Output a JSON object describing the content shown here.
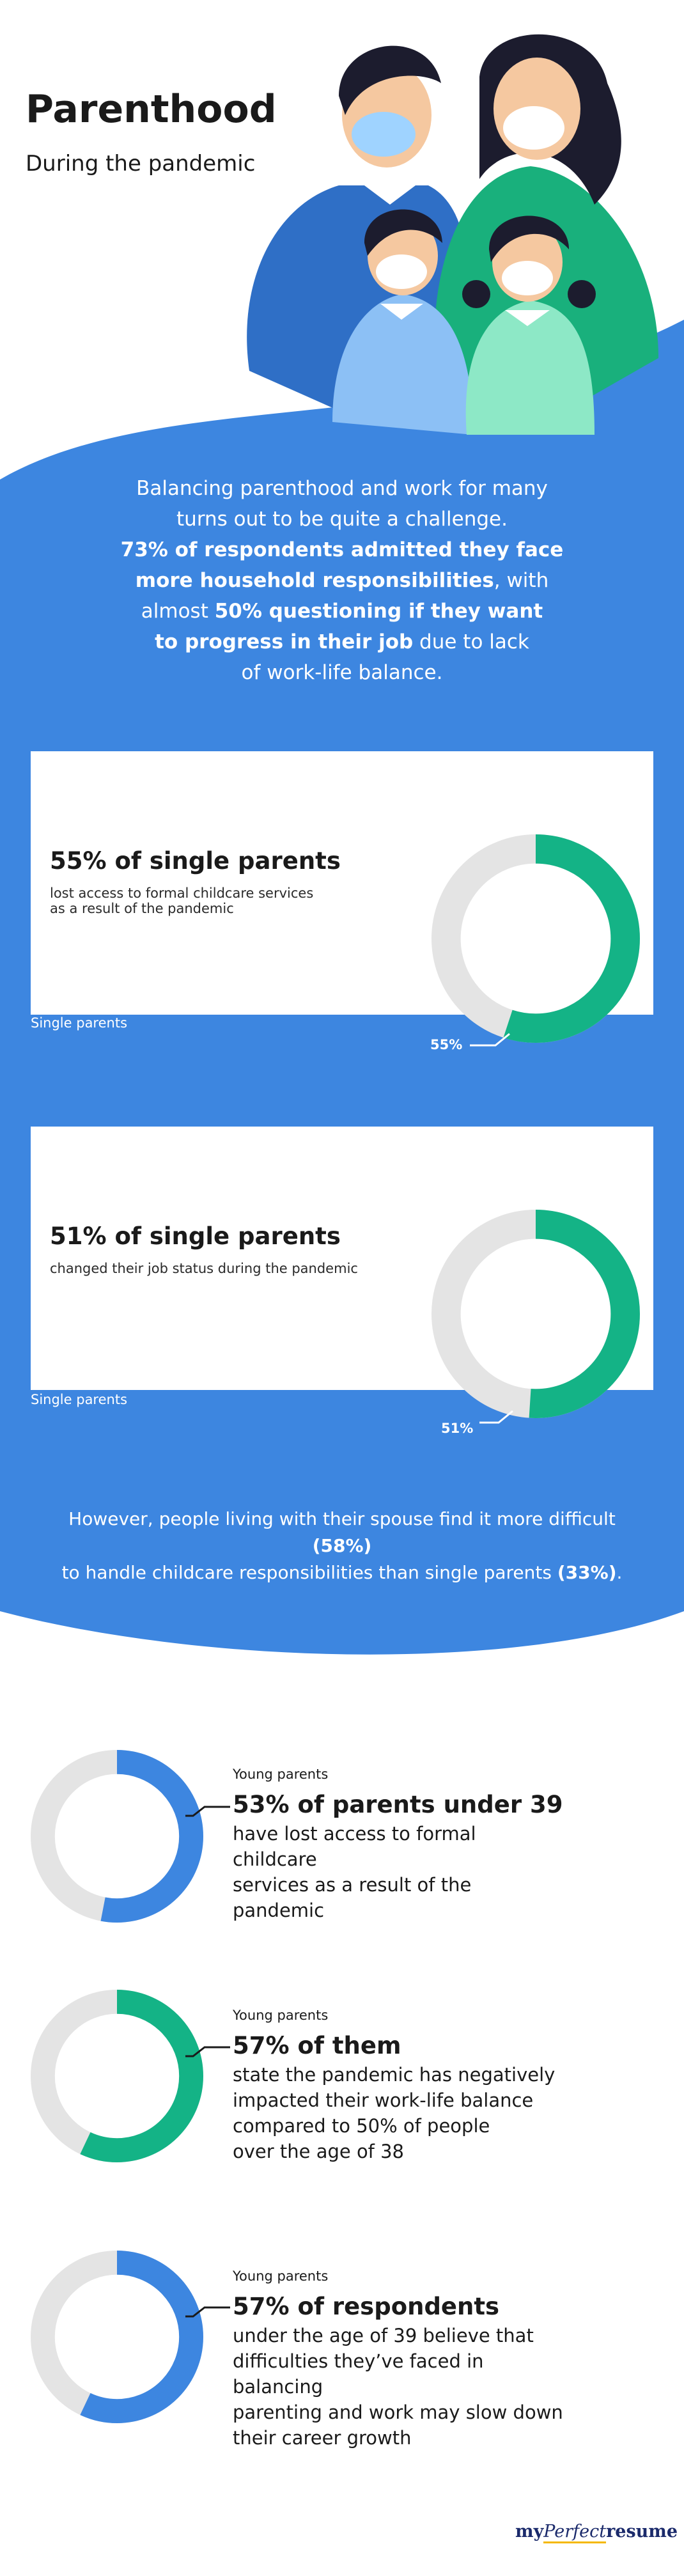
{
  "header": {
    "title": "Parenthood",
    "subtitle": "During the pandemic"
  },
  "intro": {
    "line1": "Balancing parenthood and work for many",
    "line2": "turns out to be quite a challenge.",
    "line3": "73% of respondents admitted they face",
    "line4_bold": "more household responsibilities",
    "line4_rest": ", with",
    "line5_pre": "almost ",
    "line5_bold": "50% questioning if they want",
    "line6_bold": "to progress in their job",
    "line6_rest": " due to lack",
    "line7": "of work-life balance."
  },
  "cards": [
    {
      "title": "55% of single parents",
      "desc_line1": "lost access to formal childcare services",
      "desc_line2": "as a result of the pandemic",
      "caption": "Single parents",
      "donut_label": "55%",
      "value": 55
    },
    {
      "title": "51% of single parents",
      "desc_line1": "changed their job status during the pandemic",
      "desc_line2": "",
      "caption": "Single parents",
      "donut_label": "51%",
      "value": 51
    }
  ],
  "spouse_note": {
    "line1_pre": "However, people living with their spouse find it more difficult ",
    "line1_bold": "(58%)",
    "line2_pre": "to handle childcare responsibilities than single parents ",
    "line2_bold": "(33%)",
    "line2_end": "."
  },
  "young_parents": [
    {
      "tag": "Young parents",
      "title": "53% of parents under 39",
      "desc": [
        "have lost access to formal childcare",
        "services as a result of the pandemic"
      ],
      "value": 53,
      "color": "#3d86e0"
    },
    {
      "tag": "Young parents",
      "title": "57% of them",
      "desc": [
        "state the pandemic has negatively",
        "impacted their work-life balance",
        "compared to 50% of people",
        "over the age of 38"
      ],
      "value": 57,
      "color": "#14b386"
    },
    {
      "tag": "Young parents",
      "title": "57% of respondents",
      "desc": [
        "under the age of 39 believe that",
        "difficulties they’ve faced in balancing",
        "parenting and work may slow down",
        "their career growth"
      ],
      "value": 57,
      "color": "#3d86e0"
    }
  ],
  "logo": {
    "my": "my",
    "perfect": "Perfect",
    "resume": "resume"
  },
  "colors": {
    "blue": "#3d86e0",
    "green": "#14b386",
    "track": "#e4e4e4"
  }
}
